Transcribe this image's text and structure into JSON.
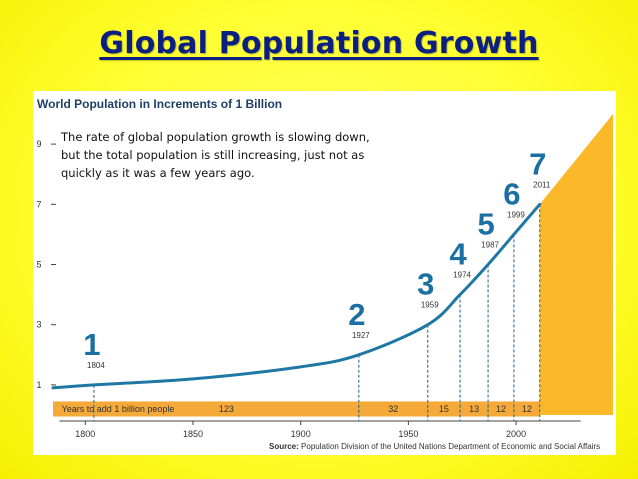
{
  "slide": {
    "title": "Global Population Growth"
  },
  "chart_data": {
    "type": "line",
    "title": "World Population in Increments of 1 Billion",
    "annotation_text": [
      "The rate of global population growth is slowing down,",
      "but the total population is still increasing, just not as",
      "quickly as it was a few years ago."
    ],
    "xlim": [
      1785,
      2045
    ],
    "ylim": [
      0,
      10
    ],
    "x_ticks": [
      "1800",
      "1850",
      "1900",
      "1950",
      "2000"
    ],
    "y_ticks": [
      "1",
      "3",
      "5",
      "7",
      "9"
    ],
    "series": [
      {
        "x": [
          1785,
          1804,
          1850,
          1900,
          1927,
          1959,
          1974,
          1987,
          1999,
          2011
        ],
        "values": [
          0.9,
          1.0,
          1.2,
          1.6,
          2.0,
          3.0,
          4.0,
          5.0,
          6.0,
          7.0
        ]
      }
    ],
    "milestones": [
      {
        "billion": "1",
        "year": "1804",
        "x": 1804,
        "y": 1
      },
      {
        "billion": "2",
        "year": "1927",
        "x": 1927,
        "y": 2
      },
      {
        "billion": "3",
        "year": "1959",
        "x": 1959,
        "y": 3
      },
      {
        "billion": "4",
        "year": "1974",
        "x": 1974,
        "y": 4
      },
      {
        "billion": "5",
        "year": "1987",
        "x": 1987,
        "y": 5
      },
      {
        "billion": "6",
        "year": "1999",
        "x": 1999,
        "y": 6
      },
      {
        "billion": "7",
        "year": "2011",
        "x": 2011,
        "y": 7
      }
    ],
    "band": {
      "label": "Years to add 1 billion people",
      "segments": [
        {
          "value": "123",
          "from": 1804,
          "to": 1927
        },
        {
          "value": "32",
          "from": 1927,
          "to": 1959
        },
        {
          "value": "15",
          "from": 1959,
          "to": 1974
        },
        {
          "value": "13",
          "from": 1974,
          "to": 1987
        },
        {
          "value": "12",
          "from": 1987,
          "to": 1999
        },
        {
          "value": "12",
          "from": 1999,
          "to": 2011
        }
      ]
    },
    "projection": {
      "from_year": 2011,
      "y_start": 7,
      "y_end": 10
    },
    "source_label": "Source:",
    "source_text": "Population Division of the United Nations Department of Economic and Social Affairs",
    "colors": {
      "line": "#1f78a4",
      "number": "#1b6fa3",
      "band": "#f4a938",
      "projection": "#fbb829",
      "title": "#1f3f66"
    },
    "grid": false
  }
}
